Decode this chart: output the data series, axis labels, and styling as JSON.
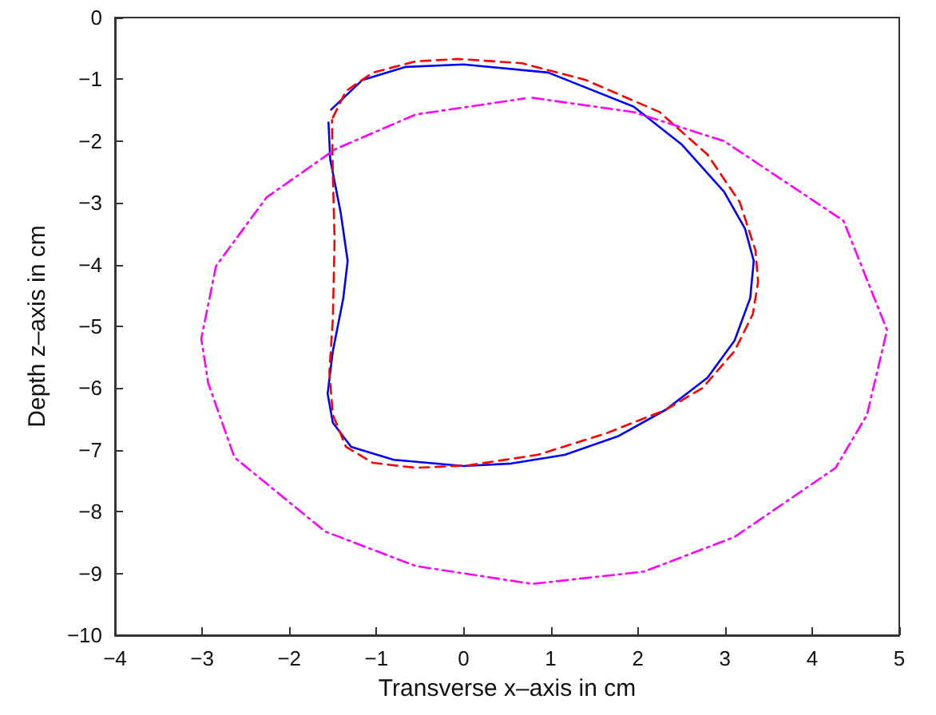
{
  "chart_data": {
    "type": "line",
    "xlabel": "Transverse x–axis in cm",
    "ylabel": "Depth z–axis in cm",
    "xlim": [
      -4,
      5
    ],
    "xticks": [
      -4,
      -3,
      -2,
      -1,
      0,
      1,
      2,
      3,
      4,
      5
    ],
    "ylim": [
      -10,
      0
    ],
    "yticks": [
      -10,
      -9,
      -8,
      -7,
      -6,
      -5,
      -4,
      -3,
      -2,
      -1,
      0
    ],
    "grid": false,
    "marker": "none",
    "series": [
      {
        "color": "#0000ff",
        "line_style": "solid",
        "x": [
          -1.52,
          -1.16,
          -0.67,
          0.0,
          0.97,
          1.95,
          2.5,
          2.99,
          3.23,
          3.33,
          3.29,
          3.11,
          2.8,
          2.32,
          1.77,
          1.16,
          0.55,
          0.0,
          -0.8,
          -1.29,
          -1.5,
          -1.56,
          -1.5,
          -1.38,
          -1.33,
          -1.41,
          -1.53,
          -1.55
        ],
        "values": [
          -1.49,
          -1.01,
          -0.8,
          -0.76,
          -0.89,
          -1.44,
          -2.05,
          -2.82,
          -3.42,
          -3.94,
          -4.54,
          -5.23,
          -5.83,
          -6.35,
          -6.78,
          -7.08,
          -7.22,
          -7.26,
          -7.16,
          -6.95,
          -6.56,
          -6.09,
          -5.4,
          -4.54,
          -3.94,
          -3.16,
          -2.3,
          -1.7
        ]
      },
      {
        "color": "#ff0000",
        "line_style": "dashed",
        "x": [
          -1.5,
          -1.35,
          -1.04,
          -0.55,
          -0.06,
          0.67,
          1.4,
          2.25,
          2.8,
          3.17,
          3.35,
          3.38,
          3.32,
          3.11,
          2.74,
          2.32,
          1.64,
          0.85,
          0.06,
          -0.55,
          -1.04,
          -1.35,
          -1.5,
          -1.54,
          -1.5,
          -1.48,
          -1.5,
          -1.51
        ],
        "values": [
          -1.62,
          -1.19,
          -0.89,
          -0.71,
          -0.67,
          -0.74,
          -1.01,
          -1.53,
          -2.22,
          -2.99,
          -3.77,
          -4.28,
          -4.8,
          -5.4,
          -6.0,
          -6.35,
          -6.73,
          -7.08,
          -7.25,
          -7.29,
          -7.21,
          -6.95,
          -6.43,
          -5.74,
          -4.88,
          -3.59,
          -2.56,
          -1.66
        ]
      },
      {
        "color": "#ff00ff",
        "line_style": "dashdot",
        "x": [
          0.79,
          1.95,
          2.99,
          4.36,
          4.86,
          4.63,
          4.27,
          3.11,
          2.07,
          0.79,
          -0.55,
          -1.59,
          -2.63,
          -2.93,
          -3.01,
          -2.84,
          -2.26,
          -1.47,
          -0.55,
          0.7
        ],
        "values": [
          -1.3,
          -1.53,
          -2.0,
          -3.29,
          -5.06,
          -6.43,
          -7.29,
          -8.41,
          -8.97,
          -9.17,
          -8.88,
          -8.32,
          -7.12,
          -5.92,
          -5.2,
          -4.02,
          -2.91,
          -2.13,
          -1.57,
          -1.31
        ]
      }
    ]
  }
}
